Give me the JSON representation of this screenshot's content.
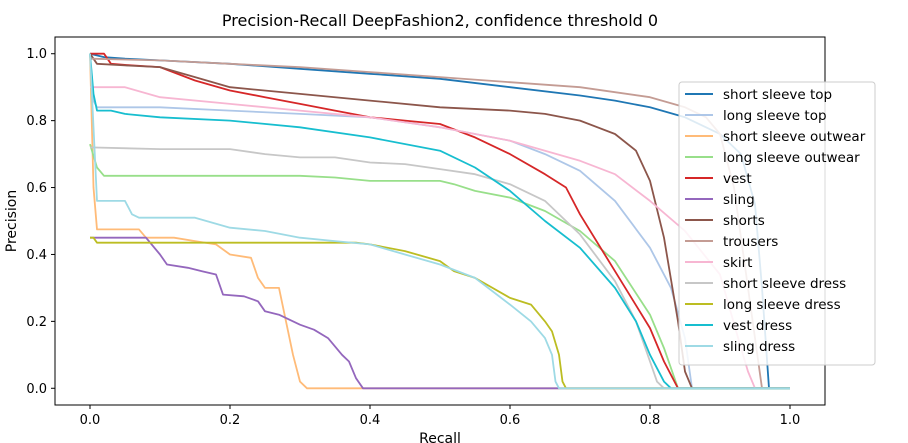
{
  "chart_data": {
    "type": "line",
    "title": "Precision-Recall DeepFashion2, confidence threshold 0",
    "xlabel": "Recall",
    "ylabel": "Precision",
    "xlim": [
      -0.05,
      1.05
    ],
    "ylim": [
      -0.05,
      1.05
    ],
    "xticks": [
      0.0,
      0.2,
      0.4,
      0.6,
      0.8,
      1.0
    ],
    "yticks": [
      0.0,
      0.2,
      0.4,
      0.6,
      0.8,
      1.0
    ],
    "xtick_labels": [
      "0.0",
      "0.2",
      "0.4",
      "0.6",
      "0.8",
      "1.0"
    ],
    "ytick_labels": [
      "0.0",
      "0.2",
      "0.4",
      "0.6",
      "0.8",
      "1.0"
    ],
    "grid": false,
    "legend_position": "right",
    "series": [
      {
        "name": "short sleeve top",
        "color": "#1f77b4",
        "x": [
          0,
          0.02,
          0.05,
          0.1,
          0.2,
          0.3,
          0.4,
          0.5,
          0.6,
          0.7,
          0.75,
          0.8,
          0.85,
          0.9,
          0.93,
          0.95,
          0.96,
          0.97,
          1.0
        ],
        "y": [
          1.0,
          0.99,
          0.985,
          0.98,
          0.97,
          0.955,
          0.94,
          0.925,
          0.9,
          0.875,
          0.86,
          0.84,
          0.81,
          0.76,
          0.7,
          0.55,
          0.3,
          0.0,
          0.0
        ]
      },
      {
        "name": "long sleeve top",
        "color": "#aec7e8",
        "x": [
          0,
          0.005,
          0.01,
          0.1,
          0.2,
          0.3,
          0.4,
          0.5,
          0.6,
          0.65,
          0.7,
          0.75,
          0.8,
          0.83,
          0.85,
          0.86,
          0.87,
          1.0
        ],
        "y": [
          1.0,
          0.86,
          0.84,
          0.84,
          0.83,
          0.82,
          0.81,
          0.78,
          0.74,
          0.7,
          0.65,
          0.56,
          0.42,
          0.3,
          0.15,
          0.0,
          0.0,
          0.0
        ]
      },
      {
        "name": "short sleeve outwear",
        "color": "#ffbb78",
        "x": [
          0,
          0.005,
          0.01,
          0.07,
          0.08,
          0.12,
          0.15,
          0.18,
          0.2,
          0.23,
          0.24,
          0.25,
          0.27,
          0.28,
          0.29,
          0.3,
          0.31,
          0.35,
          1.0
        ],
        "y": [
          1.0,
          0.6,
          0.475,
          0.475,
          0.45,
          0.45,
          0.44,
          0.43,
          0.4,
          0.39,
          0.33,
          0.3,
          0.3,
          0.2,
          0.1,
          0.02,
          0.0,
          0.0,
          0.0
        ]
      },
      {
        "name": "long sleeve outwear",
        "color": "#98df8a",
        "x": [
          0,
          0.01,
          0.02,
          0.05,
          0.1,
          0.2,
          0.3,
          0.35,
          0.4,
          0.5,
          0.52,
          0.55,
          0.6,
          0.65,
          0.7,
          0.75,
          0.8,
          0.82,
          0.84,
          0.85,
          1.0
        ],
        "y": [
          0.73,
          0.66,
          0.635,
          0.635,
          0.635,
          0.635,
          0.635,
          0.63,
          0.62,
          0.62,
          0.61,
          0.59,
          0.57,
          0.53,
          0.47,
          0.38,
          0.22,
          0.12,
          0.0,
          0.0,
          0.0
        ]
      },
      {
        "name": "vest",
        "color": "#d62728",
        "x": [
          0,
          0.02,
          0.03,
          0.06,
          0.1,
          0.15,
          0.2,
          0.25,
          0.3,
          0.35,
          0.4,
          0.45,
          0.5,
          0.55,
          0.6,
          0.65,
          0.68,
          0.7,
          0.75,
          0.8,
          0.82,
          0.84,
          1.0
        ],
        "y": [
          1.0,
          1.0,
          0.97,
          0.965,
          0.96,
          0.92,
          0.89,
          0.87,
          0.85,
          0.83,
          0.81,
          0.8,
          0.79,
          0.75,
          0.7,
          0.64,
          0.6,
          0.52,
          0.35,
          0.18,
          0.08,
          0.0,
          0.0
        ]
      },
      {
        "name": "sling",
        "color": "#9467bd",
        "x": [
          0,
          0.08,
          0.1,
          0.11,
          0.14,
          0.16,
          0.18,
          0.19,
          0.22,
          0.24,
          0.25,
          0.27,
          0.3,
          0.32,
          0.34,
          0.36,
          0.37,
          0.38,
          0.39,
          1.0
        ],
        "y": [
          0.45,
          0.45,
          0.4,
          0.37,
          0.36,
          0.35,
          0.34,
          0.28,
          0.275,
          0.26,
          0.23,
          0.22,
          0.19,
          0.175,
          0.15,
          0.1,
          0.08,
          0.03,
          0.0,
          0.0
        ]
      },
      {
        "name": "shorts",
        "color": "#8c564b",
        "x": [
          0,
          0.01,
          0.05,
          0.1,
          0.15,
          0.2,
          0.3,
          0.4,
          0.5,
          0.6,
          0.65,
          0.7,
          0.75,
          0.78,
          0.8,
          0.82,
          0.84,
          0.85,
          0.86,
          1.0
        ],
        "y": [
          1.0,
          0.97,
          0.965,
          0.96,
          0.93,
          0.9,
          0.88,
          0.86,
          0.84,
          0.83,
          0.82,
          0.8,
          0.76,
          0.71,
          0.62,
          0.45,
          0.2,
          0.05,
          0.0,
          0.0
        ]
      },
      {
        "name": "trousers",
        "color": "#c49c94",
        "x": [
          0,
          0.1,
          0.2,
          0.3,
          0.4,
          0.5,
          0.6,
          0.7,
          0.8,
          0.85,
          0.88,
          0.9,
          0.92,
          0.94,
          0.96,
          1.0
        ],
        "y": [
          0.985,
          0.98,
          0.97,
          0.96,
          0.945,
          0.93,
          0.915,
          0.9,
          0.87,
          0.84,
          0.81,
          0.76,
          0.6,
          0.3,
          0.0,
          0.0
        ]
      },
      {
        "name": "skirt",
        "color": "#f7b6d2",
        "x": [
          0,
          0.05,
          0.1,
          0.2,
          0.3,
          0.4,
          0.5,
          0.6,
          0.65,
          0.7,
          0.75,
          0.8,
          0.85,
          0.9,
          0.93,
          0.94,
          0.95,
          1.0
        ],
        "y": [
          0.9,
          0.9,
          0.87,
          0.85,
          0.83,
          0.81,
          0.78,
          0.74,
          0.71,
          0.68,
          0.64,
          0.56,
          0.47,
          0.34,
          0.12,
          0.05,
          0.0,
          0.0
        ]
      },
      {
        "name": "short sleeve dress",
        "color": "#c7c7c7",
        "x": [
          0,
          0.1,
          0.2,
          0.25,
          0.3,
          0.35,
          0.4,
          0.45,
          0.5,
          0.55,
          0.6,
          0.65,
          0.7,
          0.75,
          0.78,
          0.8,
          0.81,
          0.82,
          1.0
        ],
        "y": [
          0.72,
          0.715,
          0.715,
          0.7,
          0.69,
          0.69,
          0.675,
          0.67,
          0.655,
          0.64,
          0.61,
          0.56,
          0.46,
          0.32,
          0.2,
          0.08,
          0.02,
          0.0,
          0.0
        ]
      },
      {
        "name": "long sleeve dress",
        "color": "#bcbd22",
        "x": [
          0,
          0.005,
          0.01,
          0.1,
          0.2,
          0.3,
          0.35,
          0.38,
          0.4,
          0.45,
          0.5,
          0.52,
          0.55,
          0.6,
          0.63,
          0.65,
          0.66,
          0.67,
          0.675,
          0.68,
          1.0
        ],
        "y": [
          0.45,
          0.45,
          0.435,
          0.435,
          0.435,
          0.435,
          0.435,
          0.435,
          0.43,
          0.41,
          0.38,
          0.35,
          0.33,
          0.27,
          0.25,
          0.2,
          0.17,
          0.1,
          0.02,
          0.0,
          0.0
        ]
      },
      {
        "name": "vest dress",
        "color": "#17becf",
        "x": [
          0,
          0.005,
          0.01,
          0.03,
          0.05,
          0.1,
          0.2,
          0.3,
          0.4,
          0.5,
          0.55,
          0.6,
          0.65,
          0.7,
          0.75,
          0.78,
          0.8,
          0.82,
          0.83,
          1.0
        ],
        "y": [
          1.0,
          0.88,
          0.83,
          0.83,
          0.82,
          0.81,
          0.8,
          0.78,
          0.75,
          0.71,
          0.66,
          0.59,
          0.5,
          0.42,
          0.3,
          0.2,
          0.1,
          0.02,
          0.0,
          0.0
        ]
      },
      {
        "name": "sling dress",
        "color": "#9edae5",
        "x": [
          0,
          0.01,
          0.05,
          0.06,
          0.07,
          0.15,
          0.2,
          0.25,
          0.3,
          0.35,
          0.4,
          0.45,
          0.5,
          0.55,
          0.6,
          0.63,
          0.65,
          0.66,
          0.665,
          0.67,
          1.0
        ],
        "y": [
          1.0,
          0.56,
          0.56,
          0.52,
          0.51,
          0.51,
          0.48,
          0.47,
          0.45,
          0.44,
          0.43,
          0.4,
          0.37,
          0.33,
          0.25,
          0.2,
          0.15,
          0.1,
          0.02,
          0.0,
          0.0
        ]
      }
    ]
  }
}
